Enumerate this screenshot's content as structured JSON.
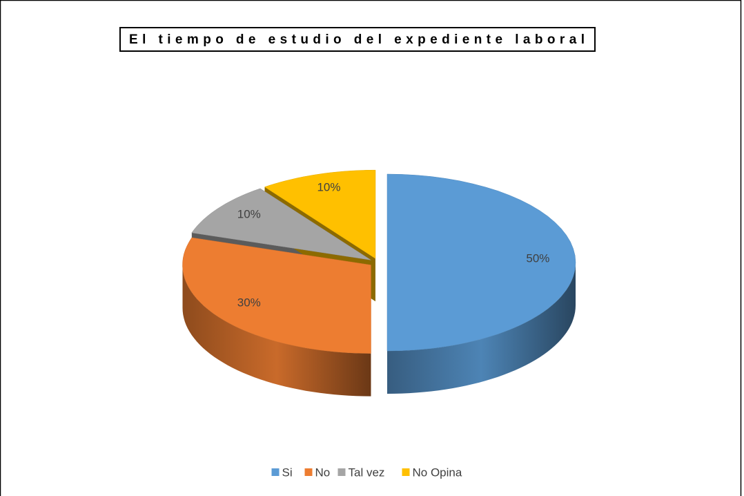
{
  "chart_data": {
    "type": "pie",
    "title": "El tiempo de estudio del expediente laboral",
    "categories": [
      "Si",
      "No",
      "Tal vez",
      "No Opina"
    ],
    "values": [
      50,
      30,
      10,
      10
    ],
    "value_labels": [
      "50%",
      "30%",
      "10%",
      "10%"
    ],
    "colors": [
      "#5b9bd5",
      "#ed7d31",
      "#a5a5a5",
      "#ffc000"
    ],
    "legend": "bottom"
  }
}
